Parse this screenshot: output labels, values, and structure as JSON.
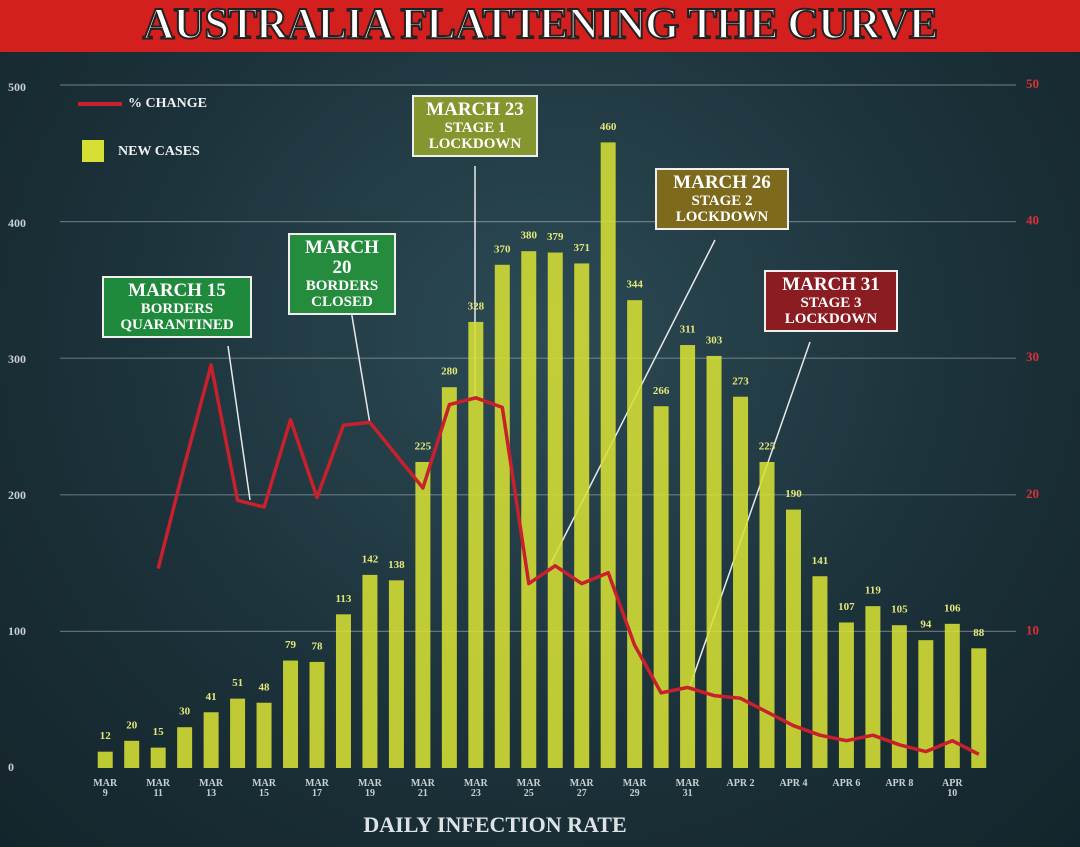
{
  "chart_data": {
    "type": "bar",
    "title": "AUSTRALIA FLATTENING THE CURVE",
    "x_label": "DAILY INFECTION RATE",
    "categories": [
      "MAR 9",
      null,
      "MAR 11",
      null,
      "MAR 13",
      null,
      "MAR 15",
      null,
      "MAR 17",
      null,
      "MAR 19",
      null,
      "MAR 21",
      null,
      "MAR 23",
      null,
      "MAR 25",
      null,
      "MAR 27",
      null,
      "MAR 29",
      null,
      "MAR 31",
      null,
      "APR 2",
      null,
      "APR 4",
      null,
      "APR 6",
      null,
      "APR 8",
      null,
      "APR 10",
      null
    ],
    "series": [
      {
        "name": "% CHANGE",
        "type": "line",
        "axis": "y2",
        "color": "#c8202c",
        "values": [
          null,
          null,
          14.6,
          22.2,
          29.5,
          19.6,
          19.1,
          25.5,
          19.8,
          25.1,
          25.3,
          22.9,
          20.5,
          26.6,
          27.1,
          26.4,
          13.5,
          14.8,
          13.5,
          14.3,
          9.0,
          5.5,
          5.9,
          5.3,
          5.1,
          4.1,
          3.1,
          2.4,
          2.0,
          2.4,
          1.7,
          1.2,
          2.0,
          1.0
        ]
      },
      {
        "name": "NEW CASES",
        "type": "bar",
        "color": "#d6e034",
        "values": [
          12,
          20,
          15,
          30,
          41,
          51,
          48,
          79,
          78,
          113,
          142,
          138,
          225,
          280,
          328,
          370,
          380,
          379,
          371,
          460,
          344,
          266,
          311,
          303,
          273,
          225,
          190,
          141,
          107,
          119,
          105,
          94,
          106,
          88
        ]
      }
    ],
    "ylim": [
      0,
      500
    ],
    "yticks": [
      0,
      100,
      200,
      300,
      400,
      500
    ],
    "y2lim": [
      0,
      50
    ],
    "y2ticks": [
      10,
      20,
      30,
      40,
      50
    ],
    "grid": true,
    "annotations": [
      {
        "title": "MARCH 15",
        "text": "BORDERS QUARANTINED",
        "color": "#1f8a3c"
      },
      {
        "title": "MARCH 20",
        "text": "BORDERS CLOSED",
        "color": "#258c3e"
      },
      {
        "title": "MARCH 23",
        "text": "STAGE 1 LOCKDOWN",
        "color": "#86962e"
      },
      {
        "title": "MARCH 26",
        "text": "STAGE 2 LOCKDOWN",
        "color": "#7d6a1c"
      },
      {
        "title": "MARCH 31",
        "text": "STAGE 3 LOCKDOWN",
        "color": "#8a1c22"
      }
    ]
  }
}
